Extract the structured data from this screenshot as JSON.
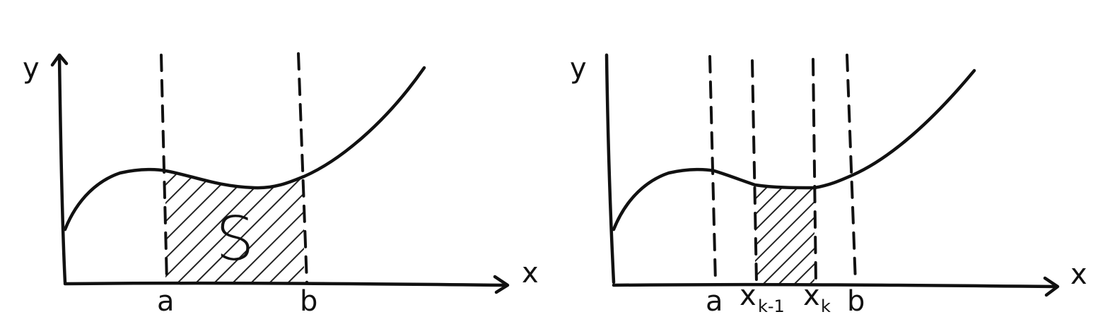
{
  "left_panel": {
    "y_axis_label": "y",
    "x_axis_label": "x",
    "bound_a_label": "a",
    "bound_b_label": "b",
    "region_label": "S"
  },
  "right_panel": {
    "y_axis_label": "y",
    "x_axis_label": "x",
    "bound_a_label": "a",
    "bound_b_label": "b",
    "xk_minus_1_base": "x",
    "xk_minus_1_sub": "k-1",
    "xk_base": "x",
    "xk_sub": "k"
  },
  "colors": {
    "ink": "#111111",
    "background": "#ffffff"
  }
}
